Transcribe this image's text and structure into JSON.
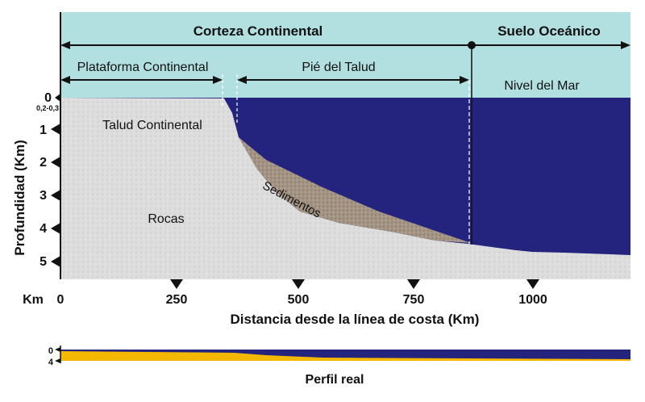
{
  "header": {
    "corteza": "Corteza Continental",
    "suelo": "Suelo Oceánico",
    "plataforma": "Plataforma Continental",
    "pie_talud": "Pié del Talud",
    "nivel_mar": "Nivel del Mar"
  },
  "regions": {
    "talud": "Talud Continental",
    "rocas": "Rocas",
    "sedimentos": "Sedimentos"
  },
  "y_axis": {
    "title": "Profundidad (Km)",
    "ticks": [
      "0",
      "0,2-0,3",
      "1",
      "2",
      "3",
      "4",
      "5"
    ]
  },
  "x_axis": {
    "unit": "Km",
    "ticks": [
      "0",
      "250",
      "500",
      "750",
      "1000"
    ],
    "title": "Distancia desde la línea de costa (Km)"
  },
  "profile": {
    "ticks": [
      "0",
      "4"
    ],
    "title": "Perfil real"
  },
  "colors": {
    "sky": "#b2dfe0",
    "sea": "#24247f",
    "rock": "#dcdcdc",
    "sediment": "#9b8b7c",
    "real_profile": "#f5b800"
  }
}
